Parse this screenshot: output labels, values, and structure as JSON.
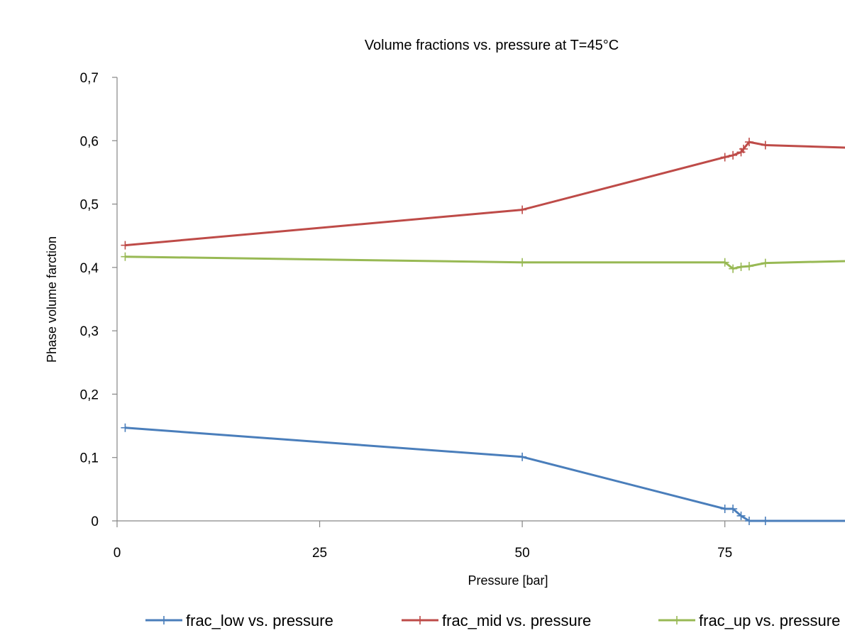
{
  "chart_data": {
    "type": "line",
    "title": "Volume fractions vs. pressure at T=45°C",
    "xlabel": "Pressure [bar]",
    "ylabel": "Phase volume farction",
    "xlim": [
      0,
      90
    ],
    "ylim": [
      0,
      0.7
    ],
    "x_ticks": [
      {
        "value": 0,
        "label": "0"
      },
      {
        "value": 25,
        "label": "25"
      },
      {
        "value": 50,
        "label": "50"
      },
      {
        "value": 75,
        "label": "75"
      }
    ],
    "y_ticks": [
      {
        "value": 0,
        "label": "0"
      },
      {
        "value": 0.1,
        "label": "0,1"
      },
      {
        "value": 0.2,
        "label": "0,2"
      },
      {
        "value": 0.3,
        "label": "0,3"
      },
      {
        "value": 0.4,
        "label": "0,4"
      },
      {
        "value": 0.5,
        "label": "0,5"
      },
      {
        "value": 0.6,
        "label": "0,6"
      },
      {
        "value": 0.7,
        "label": "0,7"
      }
    ],
    "grid": false,
    "legend_position": "bottom",
    "series": [
      {
        "name": "frac_low vs. pressure",
        "color": "#4a7ebb",
        "x": [
          1,
          50,
          75,
          76,
          77,
          78,
          80,
          90
        ],
        "y": [
          0.147,
          0.101,
          0.019,
          0.019,
          0.008,
          0.0,
          0.0,
          0.0
        ],
        "markers": [
          true,
          true,
          true,
          true,
          true,
          true,
          true,
          false
        ]
      },
      {
        "name": "frac_mid vs. pressure",
        "color": "#be4b48",
        "x": [
          1,
          50,
          75,
          76,
          77,
          77.3,
          78,
          80,
          90
        ],
        "y": [
          0.435,
          0.491,
          0.574,
          0.577,
          0.582,
          0.587,
          0.598,
          0.593,
          0.589
        ],
        "markers": [
          true,
          true,
          true,
          true,
          true,
          true,
          true,
          true,
          false
        ]
      },
      {
        "name": "frac_up vs. pressure",
        "color": "#98b954",
        "x": [
          1,
          50,
          75,
          76,
          77,
          78,
          80,
          90
        ],
        "y": [
          0.417,
          0.408,
          0.408,
          0.398,
          0.401,
          0.402,
          0.407,
          0.41
        ],
        "markers": [
          true,
          true,
          true,
          true,
          true,
          true,
          true,
          false
        ]
      }
    ]
  }
}
